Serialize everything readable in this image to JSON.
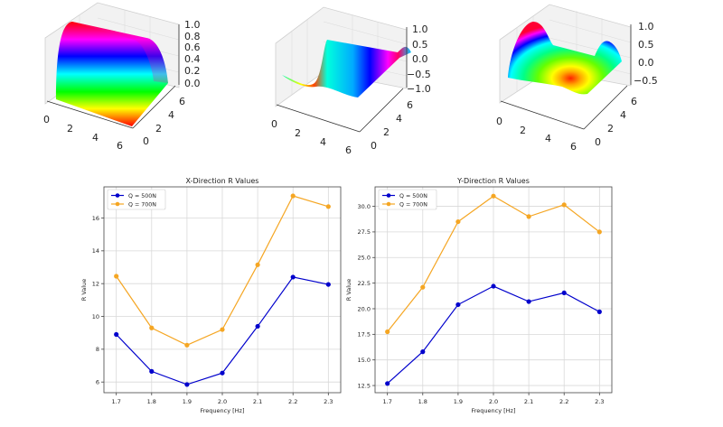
{
  "surface_plots": [
    {
      "name": "surface-1",
      "type": "surface3d",
      "function_shape": "sin(x) ridge",
      "colormap": "hsv",
      "x_ticks": [
        "0",
        "2",
        "4",
        "6"
      ],
      "y_ticks": [
        "0",
        "2",
        "4",
        "6"
      ],
      "z_ticks": [
        "0.0",
        "0.2",
        "0.4",
        "0.6",
        "0.8",
        "1.0"
      ],
      "zlim": [
        0.0,
        1.0
      ]
    },
    {
      "name": "surface-2",
      "type": "surface3d",
      "function_shape": "sin wave",
      "colormap": "hsv",
      "x_ticks": [
        "0",
        "2",
        "4",
        "6"
      ],
      "y_ticks": [
        "0",
        "2",
        "4",
        "6"
      ],
      "z_ticks": [
        "−1.0",
        "−0.5",
        "0.0",
        "0.5",
        "1.0"
      ],
      "zlim": [
        -1.0,
        1.0
      ]
    },
    {
      "name": "surface-3",
      "type": "surface3d",
      "function_shape": "cos/sin mixture",
      "colormap": "hsv",
      "x_ticks": [
        "0",
        "2",
        "4",
        "6"
      ],
      "y_ticks": [
        "0",
        "2",
        "4",
        "6"
      ],
      "z_ticks": [
        "−0.5",
        "0.0",
        "0.5",
        "1.0"
      ],
      "zlim": [
        -0.7,
        1.0
      ]
    }
  ],
  "chart_data": [
    {
      "type": "line",
      "title": "X-Direction R Values",
      "xlabel": "Frequency [Hz]",
      "ylabel": "R Value",
      "x": [
        1.7,
        1.8,
        1.9,
        2.0,
        2.1,
        2.2,
        2.3
      ],
      "x_tick_labels": [
        "1.7",
        "1.8",
        "1.9",
        "2.0",
        "2.1",
        "2.2",
        "2.3"
      ],
      "y_ticks": [
        6,
        8,
        10,
        12,
        14,
        16
      ],
      "y_tick_labels": [
        "6",
        "8",
        "10",
        "12",
        "14",
        "16"
      ],
      "xlim": [
        1.665,
        2.335
      ],
      "ylim": [
        5.35,
        17.9
      ],
      "grid": true,
      "legend_position": "top-left",
      "series": [
        {
          "name": "Q = 500N",
          "color": "#0000cc",
          "values": [
            8.9,
            6.65,
            5.85,
            6.55,
            9.4,
            12.4,
            11.95
          ]
        },
        {
          "name": "Q = 700N",
          "color": "#f5a623",
          "values": [
            12.45,
            9.3,
            8.25,
            9.2,
            13.15,
            17.35,
            16.7
          ]
        }
      ]
    },
    {
      "type": "line",
      "title": "Y-Direction R Values",
      "xlabel": "Frequency [Hz]",
      "ylabel": "R Value",
      "x": [
        1.7,
        1.8,
        1.9,
        2.0,
        2.1,
        2.2,
        2.3
      ],
      "x_tick_labels": [
        "1.7",
        "1.8",
        "1.9",
        "2.0",
        "2.1",
        "2.2",
        "2.3"
      ],
      "y_ticks": [
        12.5,
        15.0,
        17.5,
        20.0,
        22.5,
        25.0,
        27.5,
        30.0
      ],
      "y_tick_labels": [
        "12.5",
        "15.0",
        "17.5",
        "20.0",
        "22.5",
        "25.0",
        "27.5",
        "30.0"
      ],
      "xlim": [
        1.665,
        2.335
      ],
      "ylim": [
        11.8,
        31.9
      ],
      "grid": true,
      "legend_position": "top-left",
      "series": [
        {
          "name": "Q = 500N",
          "color": "#0000cc",
          "values": [
            12.7,
            15.8,
            20.4,
            22.2,
            20.7,
            21.55,
            19.7
          ]
        },
        {
          "name": "Q = 700N",
          "color": "#f5a623",
          "values": [
            17.75,
            22.1,
            28.5,
            31.0,
            29.0,
            30.15,
            27.5
          ]
        }
      ]
    }
  ]
}
